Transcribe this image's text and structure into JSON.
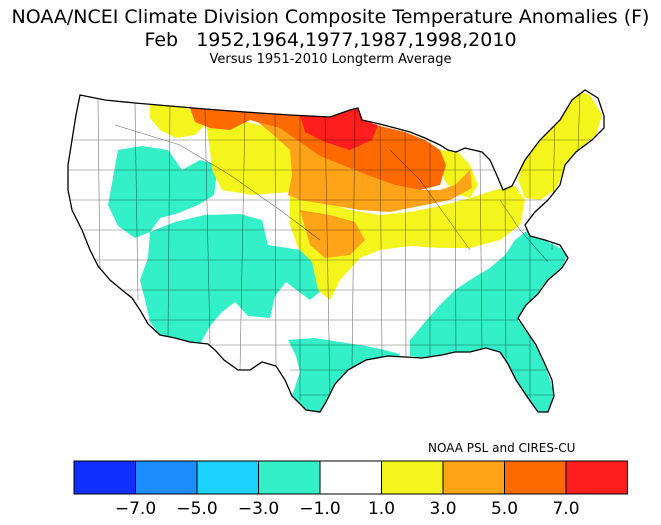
{
  "title": {
    "line1": "NOAA/NCEI Climate Division Composite Temperature Anomalies (F)",
    "line2": "Feb   1952,1964,1977,1987,1998,2010",
    "line3": "Versus 1951-2010 Longterm Average"
  },
  "credit": "NOAA PSL and CIRES-CU",
  "legend": {
    "bins": [
      {
        "color": "#0f2fff",
        "from": null,
        "to": -7.0
      },
      {
        "color": "#1e8cff",
        "from": -7.0,
        "to": -5.0
      },
      {
        "color": "#1ed2ff",
        "from": -5.0,
        "to": -3.0
      },
      {
        "color": "#33f0c8",
        "from": -3.0,
        "to": -1.0
      },
      {
        "color": "#ffffff",
        "from": -1.0,
        "to": 1.0
      },
      {
        "color": "#f5f51e",
        "from": 1.0,
        "to": 3.0
      },
      {
        "color": "#ffa319",
        "from": 3.0,
        "to": 5.0
      },
      {
        "color": "#ff6a00",
        "from": 5.0,
        "to": 7.0
      },
      {
        "color": "#ff1e1e",
        "from": 7.0,
        "to": null
      }
    ],
    "tick_labels": [
      "-7.0",
      "-5.0",
      "-3.0",
      "-1.0",
      "1.0",
      "3.0",
      "5.0",
      "7.0"
    ]
  },
  "map_colors": {
    "teal": "#33f0c8",
    "white": "#ffffff",
    "yellow": "#f5f51e",
    "light_orange": "#ffa319",
    "dark_orange": "#ff6a00",
    "red": "#ff1e1e"
  }
}
